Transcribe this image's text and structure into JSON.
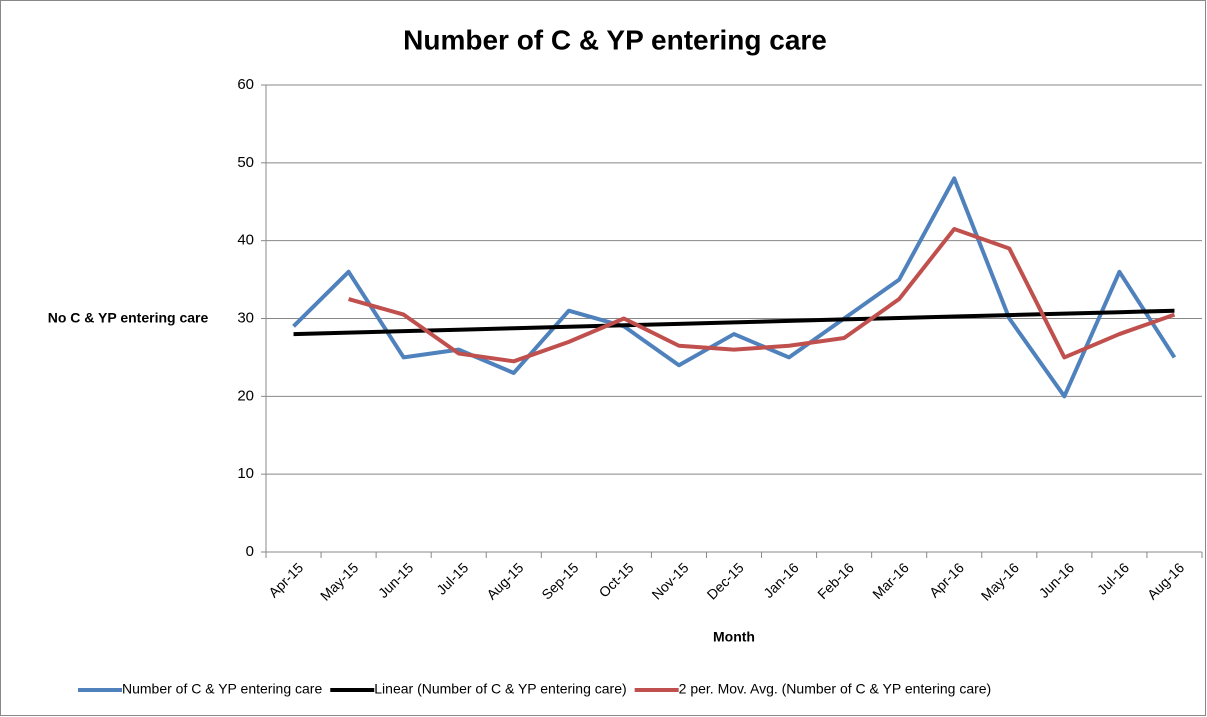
{
  "chart_data": {
    "type": "line",
    "title": "Number of C & YP entering care",
    "x_label": "Month",
    "y_label": "No C & YP entering care",
    "categories": [
      "Apr-15",
      "May-15",
      "Jun-15",
      "Jul-15",
      "Aug-15",
      "Sep-15",
      "Oct-15",
      "Nov-15",
      "Dec-15",
      "Jan-16",
      "Feb-16",
      "Mar-16",
      "Apr-16",
      "May-16",
      "Jun-16",
      "Jul-16",
      "Aug-16"
    ],
    "series": [
      {
        "name": "Number of C & YP entering care",
        "color": "#4f81bd",
        "values": [
          29,
          36,
          25,
          26,
          23,
          31,
          29,
          24,
          28,
          25,
          30,
          35,
          48,
          30,
          20,
          36,
          25
        ]
      },
      {
        "name": "Linear (Number of C & YP entering care)",
        "color": "#000000",
        "values": [
          28,
          28.19,
          28.38,
          28.56,
          28.75,
          28.94,
          29.13,
          29.31,
          29.5,
          29.69,
          29.88,
          30.06,
          30.25,
          30.44,
          30.63,
          30.81,
          31
        ]
      },
      {
        "name": "2 per. Mov. Avg. (Number of C & YP entering care)",
        "color": "#c0504d",
        "values": [
          null,
          32.5,
          30.5,
          25.5,
          24.5,
          27,
          30,
          26.5,
          26,
          26.5,
          27.5,
          32.5,
          41.5,
          39,
          25,
          28,
          30.5
        ]
      }
    ],
    "ylim": [
      0,
      60
    ],
    "yticks": [
      0,
      10,
      20,
      30,
      40,
      50,
      60
    ],
    "grid": true
  }
}
